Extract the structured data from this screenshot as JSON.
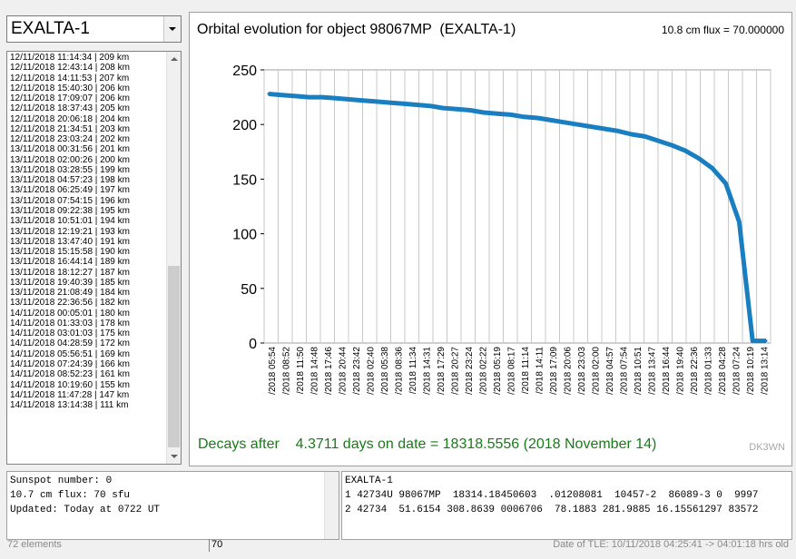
{
  "satellite_select": {
    "value": "EXALTA-1"
  },
  "pass_list": [
    "12/11/2018  11:14:34 | 209 km",
    "12/11/2018  12:43:14 | 208 km",
    "12/11/2018  14:11:53 | 207 km",
    "12/11/2018  15:40:30 | 206 km",
    "12/11/2018  17:09:07 | 206 km",
    "12/11/2018  18:37:43 | 205 km",
    "12/11/2018  20:06:18 | 204 km",
    "12/11/2018  21:34:51 | 203 km",
    "12/11/2018  23:03:24 | 202 km",
    "13/11/2018  00:31:56 | 201 km",
    "13/11/2018  02:00:26 | 200 km",
    "13/11/2018  03:28:55 | 199 km",
    "13/11/2018  04:57:23 | 198 km",
    "13/11/2018  06:25:49 | 197 km",
    "13/11/2018  07:54:15 | 196 km",
    "13/11/2018  09:22:38 | 195 km",
    "13/11/2018  10:51:01 | 194 km",
    "13/11/2018  12:19:21 | 193 km",
    "13/11/2018  13:47:40 | 191 km",
    "13/11/2018  15:15:58 | 190 km",
    "13/11/2018  16:44:14 | 189 km",
    "13/11/2018  18:12:27 | 187 km",
    "13/11/2018  19:40:39 | 185 km",
    "13/11/2018  21:08:49 | 184 km",
    "13/11/2018  22:36:56 | 182 km",
    "14/11/2018  00:05:01 | 180 km",
    "14/11/2018  01:33:03 | 178 km",
    "14/11/2018  03:01:03 | 175 km",
    "14/11/2018  04:28:59 | 172 km",
    "14/11/2018  05:56:51 | 169 km",
    "14/11/2018  07:24:39 | 166 km",
    "14/11/2018  08:52:23 | 161 km",
    "14/11/2018  10:19:60 | 155 km",
    "14/11/2018  11:47:28 | 147 km",
    "14/11/2018  13:14:38 | 111 km"
  ],
  "chart": {
    "title": "Orbital evolution for object 98067MP  (EXALTA-1)",
    "flux_note": "10.8 cm flux = 70.000000",
    "decay_text": "Decays after    4.3711 days on date = 18318.5556 (2018 November 14)",
    "watermark": "DK3WN",
    "line_color": "#1a7fc1"
  },
  "chart_data": {
    "type": "line",
    "title": "Orbital evolution for object 98067MP  (EXALTA-1)",
    "xlabel": "",
    "ylabel": "",
    "ylim": [
      0,
      250
    ],
    "yticks": [
      0,
      50,
      100,
      150,
      200,
      250
    ],
    "grid": true,
    "x_tick_labels": [
      "/2018 05:54",
      "/2018 08:52",
      "/2018 11:50",
      "/2018 14:48",
      "/2018 17:46",
      "/2018 20:44",
      "/2018 23:42",
      "/2018 02:40",
      "/2018 05:38",
      "/2018 08:36",
      "/2018 11:34",
      "/2018 14:31",
      "/2018 17:29",
      "/2018 20:27",
      "/2018 23:24",
      "/2018 02:22",
      "/2018 05:19",
      "/2018 08:17",
      "/2018 11:14",
      "/2018 14:11",
      "/2018 17:09",
      "/2018 20:06",
      "/2018 23:03",
      "/2018 02:00",
      "/2018 04:57",
      "/2018 07:54",
      "/2018 10:51",
      "/2018 13:47",
      "/2018 16:44",
      "/2018 19:40",
      "/2018 22:36",
      "/2018 01:33",
      "/2018 04:28",
      "/2018 07:24",
      "/2018 10:19",
      "/2018 13:14"
    ],
    "series": [
      {
        "values": [
          228,
          227,
          226,
          225,
          225,
          224,
          223,
          222,
          221,
          220,
          219,
          218,
          217,
          215,
          214,
          213,
          211,
          210,
          209,
          207,
          206,
          204,
          202,
          200,
          198,
          196,
          194,
          191,
          189,
          185,
          181,
          176,
          169,
          160,
          146,
          111,
          2,
          2
        ]
      }
    ]
  },
  "info_box": {
    "lines": [
      "Sunspot number: 0",
      "10.7 cm flux: 70 sfu",
      "Updated: Today at 0722 UT"
    ]
  },
  "tle_box": {
    "lines": [
      "EXALTA-1",
      "1 42734U 98067MP  18314.18450603  .01208081  10457-2  86089-3 0  9997",
      "2 42734  51.6154 308.8639 0006706  78.1883 281.9885 16.15561297 83572"
    ]
  },
  "status_bar": {
    "elements": "72 elements",
    "flux": "70",
    "tle_date": "Date of TLE: 10/11/2018 04:25:41  -> 04:01:18 hrs old"
  }
}
